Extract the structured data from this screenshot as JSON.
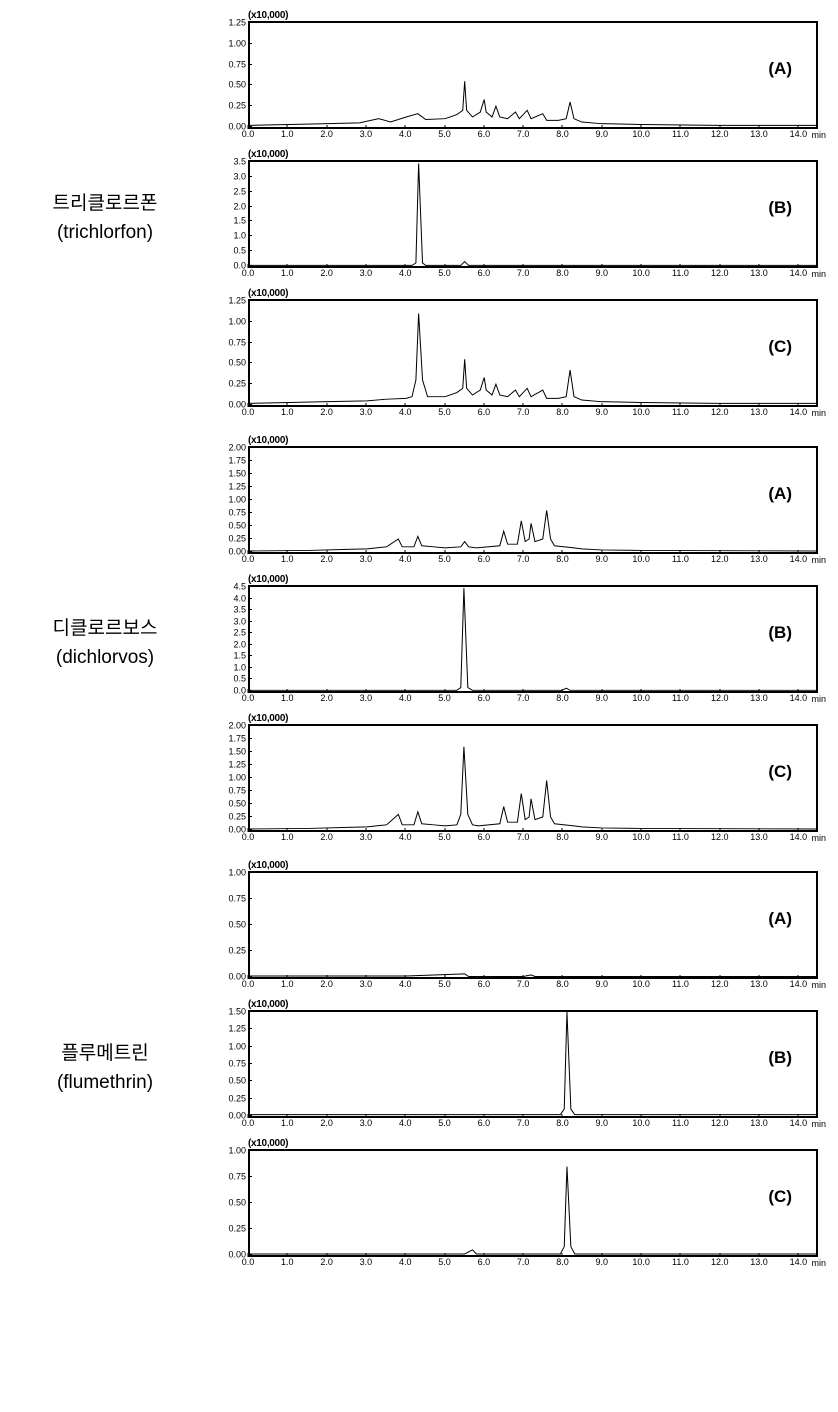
{
  "global": {
    "x_min": 0,
    "x_max": 14.5,
    "x_tick_step": 1.0,
    "x_unit_label": "min",
    "multiplier_label": "(x10,000)",
    "line_color": "#000000",
    "line_width": 1.0,
    "background_color": "#ffffff",
    "border_color": "#000000",
    "font_family": "Arial",
    "ytick_fontsize": 9,
    "xtick_fontsize": 9,
    "panel_label_fontsize": 17
  },
  "groups": [
    {
      "label_kr": "트리클로르폰",
      "label_en": "(trichlorfon)",
      "panels": [
        {
          "tag": "(A)",
          "y_max": 1.25,
          "y_ticks": [
            0.0,
            0.25,
            0.5,
            0.75,
            1.0,
            1.25
          ],
          "y_tick_labels": [
            "0.00",
            "0.25",
            "0.50",
            "0.75",
            "1.00",
            "1.25"
          ],
          "trace": [
            [
              0,
              0.02
            ],
            [
              1.0,
              0.03
            ],
            [
              2.0,
              0.04
            ],
            [
              2.8,
              0.05
            ],
            [
              3.3,
              0.1
            ],
            [
              3.6,
              0.06
            ],
            [
              4.0,
              0.12
            ],
            [
              4.3,
              0.16
            ],
            [
              4.5,
              0.09
            ],
            [
              5.0,
              0.1
            ],
            [
              5.3,
              0.15
            ],
            [
              5.45,
              0.2
            ],
            [
              5.5,
              0.55
            ],
            [
              5.55,
              0.2
            ],
            [
              5.7,
              0.12
            ],
            [
              5.9,
              0.18
            ],
            [
              6.0,
              0.33
            ],
            [
              6.05,
              0.18
            ],
            [
              6.2,
              0.12
            ],
            [
              6.3,
              0.25
            ],
            [
              6.4,
              0.12
            ],
            [
              6.6,
              0.1
            ],
            [
              6.8,
              0.18
            ],
            [
              6.9,
              0.1
            ],
            [
              7.1,
              0.2
            ],
            [
              7.2,
              0.1
            ],
            [
              7.5,
              0.16
            ],
            [
              7.6,
              0.08
            ],
            [
              7.9,
              0.08
            ],
            [
              8.1,
              0.1
            ],
            [
              8.2,
              0.3
            ],
            [
              8.3,
              0.1
            ],
            [
              8.5,
              0.06
            ],
            [
              9.0,
              0.04
            ],
            [
              10.0,
              0.03
            ],
            [
              12.0,
              0.02
            ],
            [
              14.5,
              0.02
            ]
          ]
        },
        {
          "tag": "(B)",
          "y_max": 3.5,
          "y_ticks": [
            0.0,
            0.5,
            1.0,
            1.5,
            2.0,
            2.5,
            3.0,
            3.5
          ],
          "y_tick_labels": [
            "0.0",
            "0.5",
            "1.0",
            "1.5",
            "2.0",
            "2.5",
            "3.0",
            "3.5"
          ],
          "trace": [
            [
              0,
              0.02
            ],
            [
              4.15,
              0.02
            ],
            [
              4.25,
              0.1
            ],
            [
              4.32,
              3.45
            ],
            [
              4.42,
              0.1
            ],
            [
              4.5,
              0.02
            ],
            [
              5.4,
              0.02
            ],
            [
              5.5,
              0.15
            ],
            [
              5.6,
              0.02
            ],
            [
              14.5,
              0.02
            ]
          ]
        },
        {
          "tag": "(C)",
          "y_max": 1.25,
          "y_ticks": [
            0.0,
            0.25,
            0.5,
            0.75,
            1.0,
            1.25
          ],
          "y_tick_labels": [
            "0.00",
            "0.25",
            "0.50",
            "0.75",
            "1.00",
            "1.25"
          ],
          "trace": [
            [
              0,
              0.02
            ],
            [
              1.0,
              0.03
            ],
            [
              2.0,
              0.04
            ],
            [
              3.0,
              0.05
            ],
            [
              3.5,
              0.07
            ],
            [
              4.0,
              0.08
            ],
            [
              4.15,
              0.1
            ],
            [
              4.25,
              0.3
            ],
            [
              4.32,
              1.1
            ],
            [
              4.42,
              0.3
            ],
            [
              4.55,
              0.1
            ],
            [
              5.0,
              0.1
            ],
            [
              5.3,
              0.15
            ],
            [
              5.45,
              0.2
            ],
            [
              5.5,
              0.55
            ],
            [
              5.55,
              0.2
            ],
            [
              5.7,
              0.12
            ],
            [
              5.9,
              0.18
            ],
            [
              6.0,
              0.33
            ],
            [
              6.05,
              0.18
            ],
            [
              6.2,
              0.12
            ],
            [
              6.3,
              0.25
            ],
            [
              6.4,
              0.12
            ],
            [
              6.6,
              0.1
            ],
            [
              6.8,
              0.18
            ],
            [
              6.9,
              0.1
            ],
            [
              7.1,
              0.2
            ],
            [
              7.2,
              0.1
            ],
            [
              7.5,
              0.18
            ],
            [
              7.6,
              0.08
            ],
            [
              7.9,
              0.08
            ],
            [
              8.1,
              0.1
            ],
            [
              8.2,
              0.42
            ],
            [
              8.3,
              0.1
            ],
            [
              8.5,
              0.06
            ],
            [
              9.0,
              0.04
            ],
            [
              10.0,
              0.03
            ],
            [
              12.0,
              0.02
            ],
            [
              14.5,
              0.02
            ]
          ]
        }
      ]
    },
    {
      "label_kr": "디클로르보스",
      "label_en": "(dichlorvos)",
      "panels": [
        {
          "tag": "(A)",
          "y_max": 2.0,
          "y_ticks": [
            0.0,
            0.25,
            0.5,
            0.75,
            1.0,
            1.25,
            1.5,
            1.75,
            2.0
          ],
          "y_tick_labels": [
            "0.00",
            "0.25",
            "0.50",
            "0.75",
            "1.00",
            "1.25",
            "1.50",
            "1.75",
            "2.00"
          ],
          "trace": [
            [
              0,
              0.02
            ],
            [
              1.5,
              0.03
            ],
            [
              2.5,
              0.05
            ],
            [
              3.0,
              0.06
            ],
            [
              3.5,
              0.1
            ],
            [
              3.8,
              0.25
            ],
            [
              3.9,
              0.1
            ],
            [
              4.2,
              0.1
            ],
            [
              4.3,
              0.3
            ],
            [
              4.4,
              0.12
            ],
            [
              4.7,
              0.1
            ],
            [
              5.0,
              0.08
            ],
            [
              5.4,
              0.1
            ],
            [
              5.5,
              0.2
            ],
            [
              5.6,
              0.1
            ],
            [
              5.8,
              0.08
            ],
            [
              6.4,
              0.12
            ],
            [
              6.5,
              0.4
            ],
            [
              6.6,
              0.15
            ],
            [
              6.85,
              0.15
            ],
            [
              6.95,
              0.6
            ],
            [
              7.05,
              0.2
            ],
            [
              7.15,
              0.25
            ],
            [
              7.2,
              0.55
            ],
            [
              7.3,
              0.2
            ],
            [
              7.5,
              0.25
            ],
            [
              7.6,
              0.8
            ],
            [
              7.7,
              0.25
            ],
            [
              7.8,
              0.12
            ],
            [
              8.3,
              0.08
            ],
            [
              8.5,
              0.06
            ],
            [
              9.0,
              0.04
            ],
            [
              10.0,
              0.03
            ],
            [
              14.5,
              0.02
            ]
          ]
        },
        {
          "tag": "(B)",
          "y_max": 4.5,
          "y_ticks": [
            0.0,
            0.5,
            1.0,
            1.5,
            2.0,
            2.5,
            3.0,
            3.5,
            4.0,
            4.5
          ],
          "y_tick_labels": [
            "0.0",
            "0.5",
            "1.0",
            "1.5",
            "2.0",
            "2.5",
            "3.0",
            "3.5",
            "4.0",
            "4.5"
          ],
          "trace": [
            [
              0,
              0.03
            ],
            [
              5.3,
              0.03
            ],
            [
              5.4,
              0.15
            ],
            [
              5.48,
              4.45
            ],
            [
              5.58,
              0.15
            ],
            [
              5.7,
              0.03
            ],
            [
              8.0,
              0.03
            ],
            [
              8.1,
              0.12
            ],
            [
              8.2,
              0.03
            ],
            [
              14.5,
              0.03
            ]
          ]
        },
        {
          "tag": "(C)",
          "y_max": 2.0,
          "y_ticks": [
            0.0,
            0.25,
            0.5,
            0.75,
            1.0,
            1.25,
            1.5,
            1.75,
            2.0
          ],
          "y_tick_labels": [
            "0.00",
            "0.25",
            "0.50",
            "0.75",
            "1.00",
            "1.25",
            "1.50",
            "1.75",
            "2.00"
          ],
          "trace": [
            [
              0,
              0.02
            ],
            [
              1.5,
              0.03
            ],
            [
              2.5,
              0.05
            ],
            [
              3.0,
              0.06
            ],
            [
              3.5,
              0.1
            ],
            [
              3.8,
              0.3
            ],
            [
              3.9,
              0.1
            ],
            [
              4.2,
              0.1
            ],
            [
              4.3,
              0.35
            ],
            [
              4.4,
              0.12
            ],
            [
              4.7,
              0.1
            ],
            [
              5.0,
              0.08
            ],
            [
              5.3,
              0.1
            ],
            [
              5.4,
              0.3
            ],
            [
              5.48,
              1.6
            ],
            [
              5.58,
              0.3
            ],
            [
              5.7,
              0.1
            ],
            [
              5.85,
              0.08
            ],
            [
              6.4,
              0.12
            ],
            [
              6.5,
              0.45
            ],
            [
              6.6,
              0.15
            ],
            [
              6.85,
              0.15
            ],
            [
              6.95,
              0.7
            ],
            [
              7.05,
              0.2
            ],
            [
              7.15,
              0.25
            ],
            [
              7.2,
              0.6
            ],
            [
              7.3,
              0.2
            ],
            [
              7.5,
              0.25
            ],
            [
              7.6,
              0.95
            ],
            [
              7.7,
              0.25
            ],
            [
              7.8,
              0.12
            ],
            [
              8.3,
              0.08
            ],
            [
              8.5,
              0.06
            ],
            [
              9.0,
              0.04
            ],
            [
              10.0,
              0.03
            ],
            [
              14.5,
              0.02
            ]
          ]
        }
      ]
    },
    {
      "label_kr": "플루메트린",
      "label_en": "(flumethrin)",
      "panels": [
        {
          "tag": "(A)",
          "y_max": 1.0,
          "y_ticks": [
            0.0,
            0.25,
            0.5,
            0.75,
            1.0
          ],
          "y_tick_labels": [
            "0.00",
            "0.25",
            "0.50",
            "0.75",
            "1.00"
          ],
          "trace": [
            [
              0,
              0.01
            ],
            [
              4.0,
              0.01
            ],
            [
              5.5,
              0.03
            ],
            [
              5.6,
              0.005
            ],
            [
              7.0,
              0.005
            ],
            [
              7.2,
              0.02
            ],
            [
              7.3,
              0.005
            ],
            [
              14.5,
              0.005
            ]
          ]
        },
        {
          "tag": "(B)",
          "y_max": 1.5,
          "y_ticks": [
            0.0,
            0.25,
            0.5,
            0.75,
            1.0,
            1.25,
            1.5
          ],
          "y_tick_labels": [
            "0.00",
            "0.25",
            "0.50",
            "0.75",
            "1.00",
            "1.25",
            "1.50"
          ],
          "trace": [
            [
              0,
              0.02
            ],
            [
              7.95,
              0.02
            ],
            [
              8.05,
              0.1
            ],
            [
              8.12,
              1.5
            ],
            [
              8.22,
              0.1
            ],
            [
              8.32,
              0.02
            ],
            [
              14.5,
              0.02
            ]
          ]
        },
        {
          "tag": "(C)",
          "y_max": 1.0,
          "y_ticks": [
            0.0,
            0.25,
            0.5,
            0.75,
            1.0
          ],
          "y_tick_labels": [
            "0.00",
            "0.25",
            "0.50",
            "0.75",
            "1.00"
          ],
          "trace": [
            [
              0,
              0.01
            ],
            [
              5.5,
              0.01
            ],
            [
              5.7,
              0.05
            ],
            [
              5.8,
              0.01
            ],
            [
              7.95,
              0.01
            ],
            [
              8.05,
              0.08
            ],
            [
              8.12,
              0.85
            ],
            [
              8.22,
              0.08
            ],
            [
              8.32,
              0.01
            ],
            [
              14.5,
              0.01
            ]
          ]
        }
      ]
    }
  ]
}
